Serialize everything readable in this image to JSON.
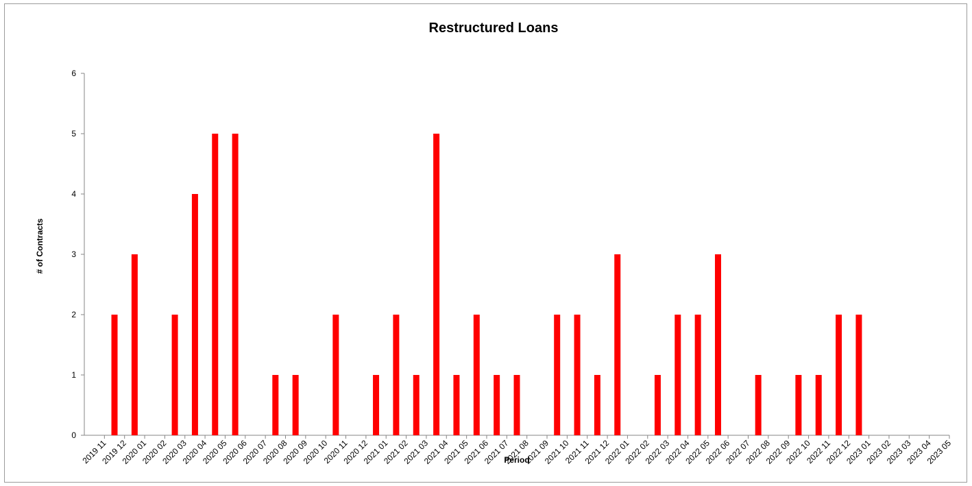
{
  "chart_data": {
    "type": "bar",
    "title": "Restructured Loans",
    "xlabel": "Period",
    "ylabel": "# of Contracts",
    "ylim": [
      0,
      6
    ],
    "yticks": [
      0,
      1,
      2,
      3,
      4,
      5,
      6
    ],
    "grid": false,
    "legend": "none",
    "bar_color": "#ff0000",
    "categories": [
      "2019 11",
      "2019 12",
      "2020 01",
      "2020 02",
      "2020 03",
      "2020 04",
      "2020 05",
      "2020 06",
      "2020 07",
      "2020 08",
      "2020 09",
      "2020 10",
      "2020 11",
      "2020 12",
      "2021 01",
      "2021 02",
      "2021 03",
      "2021 04",
      "2021 05",
      "2021 06",
      "2021 07",
      "2021 08",
      "2021 09",
      "2021 10",
      "2021 11",
      "2021 12",
      "2022 01",
      "2022 02",
      "2022 03",
      "2022 04",
      "2022 05",
      "2022 06",
      "2022 07",
      "2022 08",
      "2022 09",
      "2022 10",
      "2022 11",
      "2022 12",
      "2023 01",
      "2023 02",
      "2023 03",
      "2023 04",
      "2023 05"
    ],
    "values": [
      0,
      2,
      3,
      0,
      2,
      4,
      5,
      5,
      0,
      1,
      1,
      0,
      2,
      0,
      1,
      2,
      1,
      5,
      1,
      2,
      1,
      1,
      0,
      2,
      2,
      1,
      3,
      0,
      1,
      2,
      2,
      3,
      0,
      1,
      0,
      1,
      1,
      2,
      2,
      0,
      0,
      0,
      0
    ]
  }
}
